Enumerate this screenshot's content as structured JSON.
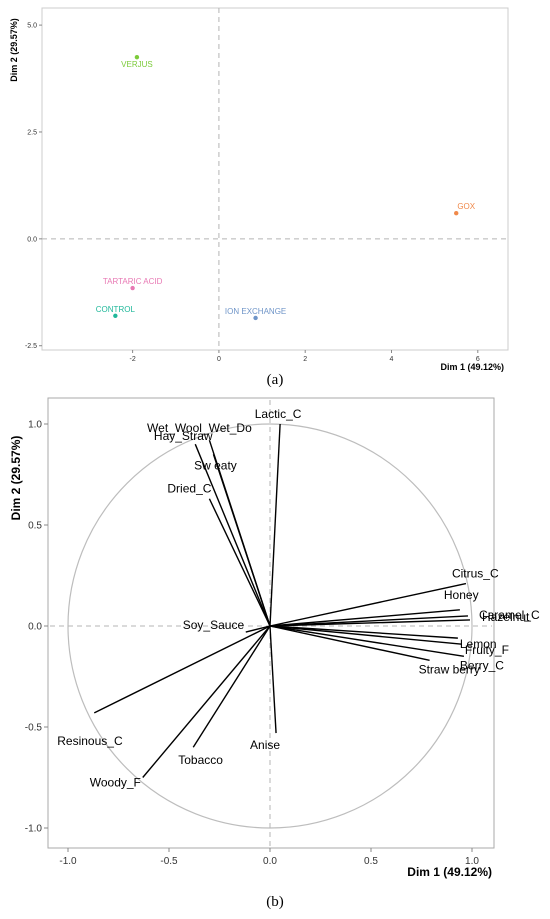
{
  "chart_data": [
    {
      "type": "scatter",
      "panel_label": "(a)",
      "xlabel": "Dim 1 (49.12%)",
      "ylabel": "Dim 2 (29.57%)",
      "xlim": [
        -4.1,
        6.7
      ],
      "ylim": [
        -2.6,
        5.4
      ],
      "xticks": [
        -2,
        0,
        2,
        4,
        6
      ],
      "xtick_labels": [
        "-2",
        "0",
        "2",
        "4",
        "6"
      ],
      "yticks": [
        -2.5,
        0.0,
        2.5,
        5.0
      ],
      "ytick_labels": [
        "-2.5",
        "0.0",
        "2.5",
        "5.0"
      ],
      "grid": false,
      "reference_lines": "dashed lines at x=0 and y=0",
      "points": [
        {
          "label": "VERJUS",
          "x": -1.9,
          "y": 4.25,
          "color": "#7CCB3A"
        },
        {
          "label": "GOX",
          "x": 5.5,
          "y": 0.6,
          "color": "#F0894A"
        },
        {
          "label": "TARTARIC ACID",
          "x": -2.0,
          "y": -1.15,
          "color": "#E879B4"
        },
        {
          "label": "CONTROL",
          "x": -2.4,
          "y": -1.8,
          "color": "#1FB89A"
        },
        {
          "label": "ION EXCHANGE",
          "x": 0.85,
          "y": -1.85,
          "color": "#6F95C8"
        }
      ]
    },
    {
      "type": "biplot",
      "panel_label": "(b)",
      "xlabel": "Dim 1 (49.12%)",
      "ylabel": "Dim 2 (29.57%)",
      "xlim": [
        -1.1,
        1.1
      ],
      "ylim": [
        -1.1,
        1.1
      ],
      "xticks": [
        -1.0,
        -0.5,
        0.0,
        0.5,
        1.0
      ],
      "xtick_labels": [
        "-1.0",
        "-0.5",
        "0.0",
        "0.5",
        "1.0"
      ],
      "yticks": [
        -1.0,
        -0.5,
        0.0,
        0.5,
        1.0
      ],
      "ytick_labels": [
        "-1.0",
        "-0.5",
        "0.0",
        "0.5",
        "1.0"
      ],
      "grid": false,
      "unit_circle": true,
      "reference_lines": "dashed lines at x=0 and y=0",
      "arrow_color": "#000000",
      "circle_color": "#bdbdbd",
      "vectors": [
        {
          "label": "Lactic_C",
          "x": 0.05,
          "y": 1.0
        },
        {
          "label": "Wet_Wool_Wet_Do",
          "x": -0.3,
          "y": 0.92
        },
        {
          "label": "Sw eaty",
          "x": -0.28,
          "y": 0.85
        },
        {
          "label": "Hay_Straw",
          "x": -0.37,
          "y": 0.9
        },
        {
          "label": "Dried_C",
          "x": -0.3,
          "y": 0.63
        },
        {
          "label": "Citrus_C",
          "x": 0.97,
          "y": 0.21
        },
        {
          "label": "Honey",
          "x": 0.94,
          "y": 0.08
        },
        {
          "label": "Caramel_C",
          "x": 0.98,
          "y": 0.05
        },
        {
          "label": "Hazelnut",
          "x": 0.99,
          "y": 0.03
        },
        {
          "label": "Lemon",
          "x": 0.93,
          "y": -0.06
        },
        {
          "label": "Fruity_F",
          "x": 0.95,
          "y": -0.09
        },
        {
          "label": "Berry_C",
          "x": 0.96,
          "y": -0.15
        },
        {
          "label": "Straw berry",
          "x": 0.79,
          "y": -0.17
        },
        {
          "label": "Soy_Sauce",
          "x": -0.12,
          "y": -0.03
        },
        {
          "label": "Resinous_C",
          "x": -0.87,
          "y": -0.43
        },
        {
          "label": "Woody_F",
          "x": -0.63,
          "y": -0.75
        },
        {
          "label": "Tobacco",
          "x": -0.38,
          "y": -0.6
        },
        {
          "label": "Anise",
          "x": 0.03,
          "y": -0.53
        }
      ]
    }
  ]
}
